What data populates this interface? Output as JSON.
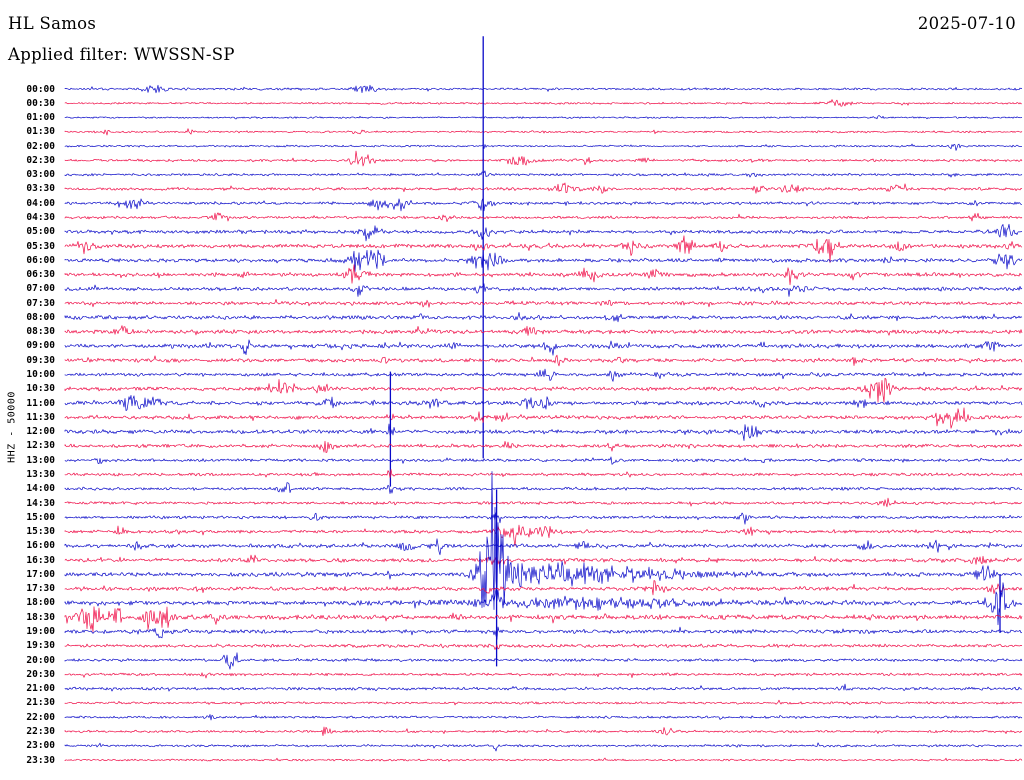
{
  "header": {
    "station": "HL Samos",
    "date": "2025-07-10",
    "filter_label": "Applied filter: WWSSN-SP"
  },
  "axis": {
    "scale_label": "HHZ - 50000"
  },
  "colors": {
    "blue": "#0a0ac8",
    "red": "#ef0d47",
    "text": "#000000",
    "background": "#ffffff"
  },
  "chart_data": {
    "type": "line",
    "subtype": "seismogram-helicorder",
    "station": "HL Samos",
    "date": "2025-07-10",
    "filter": "WWSSN-SP",
    "scale": "HHZ - 50000",
    "minutes_per_row": 30,
    "row_colors_alternate": [
      "blue",
      "red"
    ],
    "rows": [
      {
        "t": "00:00",
        "c": "blue",
        "n": 1.1,
        "e": [
          [
            0.094,
            4,
            8
          ],
          [
            0.314,
            5,
            9
          ]
        ]
      },
      {
        "t": "00:30",
        "c": "red",
        "n": 1.0,
        "e": [
          [
            0.805,
            3.5,
            8
          ]
        ]
      },
      {
        "t": "01:00",
        "c": "blue",
        "n": 0.9,
        "e": [
          [
            0.85,
            1.5,
            5
          ]
        ]
      },
      {
        "t": "01:30",
        "c": "red",
        "n": 1.0,
        "e": [
          [
            0.042,
            4,
            2
          ],
          [
            0.131,
            4,
            2
          ],
          [
            0.308,
            3,
            4
          ]
        ]
      },
      {
        "t": "02:00",
        "c": "blue",
        "n": 1.0,
        "e": [
          [
            0.437,
            3,
            2
          ],
          [
            0.93,
            4,
            3
          ]
        ]
      },
      {
        "t": "02:30",
        "c": "red",
        "n": 1.3,
        "e": [
          [
            0.308,
            8,
            7
          ],
          [
            0.475,
            9,
            8
          ],
          [
            0.543,
            3,
            5
          ],
          [
            0.606,
            3,
            5
          ],
          [
            0.721,
            2.5,
            4
          ]
        ]
      },
      {
        "t": "03:00",
        "c": "blue",
        "n": 1.2,
        "e": [
          [
            0.437,
            5,
            3
          ],
          [
            0.72,
            3,
            4
          ],
          [
            0.93,
            2.5,
            4
          ]
        ]
      },
      {
        "t": "03:30",
        "c": "red",
        "n": 1.5,
        "e": [
          [
            0.522,
            7,
            7
          ],
          [
            0.559,
            5,
            5
          ],
          [
            0.726,
            4,
            5
          ],
          [
            0.758,
            7,
            6
          ],
          [
            0.867,
            6,
            5
          ]
        ]
      },
      {
        "t": "04:00",
        "c": "blue",
        "n": 1.5,
        "e": [
          [
            0.073,
            6,
            8
          ],
          [
            0.329,
            8,
            6
          ],
          [
            0.35,
            9,
            6
          ],
          [
            0.437,
            12,
            5
          ],
          [
            0.951,
            3,
            4
          ]
        ],
        "s": [
          [
            0.437,
            167,
            255
          ]
        ]
      },
      {
        "t": "04:30",
        "c": "red",
        "n": 1.4,
        "e": [
          [
            0.162,
            5,
            6
          ],
          [
            0.397,
            4,
            4
          ],
          [
            0.951,
            3.5,
            4
          ]
        ]
      },
      {
        "t": "05:00",
        "c": "blue",
        "n": 1.8,
        "e": [
          [
            0.317,
            9,
            6
          ],
          [
            0.437,
            7,
            4
          ],
          [
            0.982,
            8,
            6
          ]
        ]
      },
      {
        "t": "05:30",
        "c": "red",
        "n": 2.0,
        "e": [
          [
            0.024,
            7,
            7
          ],
          [
            0.434,
            4,
            5
          ],
          [
            0.59,
            8,
            6
          ],
          [
            0.648,
            9,
            6
          ],
          [
            0.684,
            7,
            5
          ],
          [
            0.789,
            9,
            6
          ],
          [
            0.799,
            8,
            5
          ],
          [
            0.873,
            5,
            5
          ],
          [
            0.988,
            4,
            4
          ]
        ]
      },
      {
        "t": "06:00",
        "c": "blue",
        "n": 2.0,
        "e": [
          [
            0.308,
            12,
            7
          ],
          [
            0.324,
            10,
            6
          ],
          [
            0.434,
            10,
            6
          ],
          [
            0.449,
            9,
            5
          ],
          [
            0.862,
            4,
            4
          ],
          [
            0.982,
            8,
            6
          ]
        ]
      },
      {
        "t": "06:30",
        "c": "red",
        "n": 2.0,
        "e": [
          [
            0.188,
            4,
            4
          ],
          [
            0.303,
            10,
            7
          ],
          [
            0.549,
            7,
            6
          ],
          [
            0.617,
            8,
            5
          ],
          [
            0.758,
            8,
            5
          ],
          [
            0.826,
            4,
            4
          ]
        ]
      },
      {
        "t": "07:00",
        "c": "blue",
        "n": 1.8,
        "e": [
          [
            0.308,
            6,
            5
          ],
          [
            0.437,
            5,
            4
          ],
          [
            0.726,
            5,
            4
          ],
          [
            0.768,
            8,
            6
          ]
        ]
      },
      {
        "t": "07:30",
        "c": "red",
        "n": 1.8,
        "e": [
          [
            0.376,
            4,
            4
          ],
          [
            0.567,
            6,
            3
          ],
          [
            0.742,
            3,
            3
          ]
        ]
      },
      {
        "t": "08:00",
        "c": "blue",
        "n": 2.0,
        "e": [
          [
            0.371,
            5,
            4
          ],
          [
            0.475,
            5,
            4
          ],
          [
            0.573,
            7,
            4
          ]
        ]
      },
      {
        "t": "08:30",
        "c": "red",
        "n": 2.0,
        "e": [
          [
            0.057,
            6,
            6
          ],
          [
            0.371,
            4,
            3
          ],
          [
            0.486,
            6,
            5
          ]
        ]
      },
      {
        "t": "09:00",
        "c": "blue",
        "n": 2.2,
        "e": [
          [
            0.188,
            6,
            3
          ],
          [
            0.408,
            4,
            3
          ],
          [
            0.507,
            5,
            4
          ],
          [
            0.573,
            5,
            3
          ],
          [
            0.967,
            6,
            5
          ]
        ]
      },
      {
        "t": "09:30",
        "c": "red",
        "n": 2.0,
        "e": [
          [
            0.334,
            4,
            3
          ],
          [
            0.517,
            5,
            4
          ],
          [
            0.58,
            4,
            3
          ],
          [
            0.826,
            4,
            3
          ]
        ]
      },
      {
        "t": "10:00",
        "c": "blue",
        "n": 1.9,
        "e": [
          [
            0.502,
            7,
            5
          ],
          [
            0.573,
            5,
            3
          ],
          [
            0.622,
            4,
            3
          ]
        ]
      },
      {
        "t": "10:30",
        "c": "red",
        "n": 1.9,
        "e": [
          [
            0.219,
            8,
            6
          ],
          [
            0.235,
            7,
            5
          ],
          [
            0.266,
            4,
            4
          ],
          [
            0.846,
            11,
            7
          ],
          [
            0.857,
            9,
            5
          ]
        ]
      },
      {
        "t": "11:00",
        "c": "blue",
        "n": 2.0,
        "e": [
          [
            0.068,
            8,
            7
          ],
          [
            0.089,
            7,
            6
          ],
          [
            0.277,
            6,
            5
          ],
          [
            0.381,
            7,
            6
          ],
          [
            0.486,
            6,
            5
          ],
          [
            0.502,
            6,
            4
          ],
          [
            0.726,
            5,
            4
          ],
          [
            0.831,
            4,
            4
          ]
        ]
      },
      {
        "t": "11:30",
        "c": "red",
        "n": 2.0,
        "e": [
          [
            0.34,
            8,
            2
          ],
          [
            0.434,
            5,
            4
          ],
          [
            0.455,
            5,
            4
          ],
          [
            0.92,
            10,
            8
          ],
          [
            0.935,
            9,
            6
          ]
        ]
      },
      {
        "t": "12:00",
        "c": "blue",
        "n": 2.0,
        "e": [
          [
            0.34,
            14,
            2
          ],
          [
            0.711,
            7,
            5
          ],
          [
            0.721,
            6,
            4
          ],
          [
            0.977,
            6,
            5
          ]
        ],
        "s": [
          [
            0.34,
            60,
            55
          ]
        ]
      },
      {
        "t": "12:30",
        "c": "red",
        "n": 1.8,
        "e": [
          [
            0.272,
            7,
            5
          ],
          [
            0.465,
            5,
            4
          ],
          [
            0.573,
            4,
            3
          ]
        ]
      },
      {
        "t": "13:00",
        "c": "blue",
        "n": 1.5,
        "e": [
          [
            0.037,
            4,
            3
          ],
          [
            0.573,
            6,
            3
          ],
          [
            0.732,
            4,
            3
          ]
        ]
      },
      {
        "t": "13:30",
        "c": "red",
        "n": 1.5,
        "e": [
          [
            0.34,
            5,
            2
          ]
        ]
      },
      {
        "t": "14:00",
        "c": "blue",
        "n": 1.5,
        "e": [
          [
            0.23,
            6,
            5
          ],
          [
            0.34,
            10,
            1.5
          ]
        ]
      },
      {
        "t": "14:30",
        "c": "red",
        "n": 1.5,
        "e": [
          [
            0.857,
            5,
            4
          ]
        ]
      },
      {
        "t": "15:00",
        "c": "blue",
        "n": 1.5,
        "e": [
          [
            0.261,
            5,
            3
          ],
          [
            0.451,
            8,
            3
          ],
          [
            0.711,
            5,
            4
          ]
        ]
      },
      {
        "t": "15:30",
        "c": "red",
        "n": 1.6,
        "e": [
          [
            0.057,
            5,
            3
          ],
          [
            0.455,
            7,
            5
          ],
          [
            0.475,
            9,
            7
          ],
          [
            0.502,
            6,
            8
          ],
          [
            0.716,
            5,
            4
          ]
        ]
      },
      {
        "t": "16:00",
        "c": "blue",
        "n": 2.0,
        "e": [
          [
            0.073,
            5,
            4
          ],
          [
            0.355,
            7,
            5
          ],
          [
            0.392,
            6,
            5
          ],
          [
            0.543,
            5,
            4
          ],
          [
            0.836,
            7,
            5
          ],
          [
            0.909,
            6,
            5
          ]
        ]
      },
      {
        "t": "16:30",
        "c": "red",
        "n": 2.0,
        "e": [
          [
            0.193,
            5,
            4
          ],
          [
            0.451,
            6,
            5
          ],
          [
            0.956,
            5,
            5
          ]
        ]
      },
      {
        "t": "17:00",
        "c": "blue",
        "n": 2.2,
        "e": [
          [
            0.444,
            40,
            8
          ],
          [
            0.455,
            30,
            12
          ],
          [
            0.517,
            10,
            30
          ],
          [
            0.601,
            5,
            50
          ],
          [
            0.961,
            10,
            6
          ]
        ],
        "s": [
          [
            0.451,
            85,
            92
          ]
        ]
      },
      {
        "t": "17:30",
        "c": "red",
        "n": 2.0,
        "e": [
          [
            0.441,
            8,
            4
          ],
          [
            0.617,
            6,
            5
          ],
          [
            0.972,
            6,
            5
          ]
        ]
      },
      {
        "t": "18:00",
        "c": "blue",
        "n": 2.4,
        "e": [
          [
            0.451,
            10,
            4
          ],
          [
            0.55,
            5,
            80
          ],
          [
            0.977,
            22,
            8
          ]
        ],
        "s": [
          [
            0.977,
            28,
            30
          ]
        ]
      },
      {
        "t": "18:30",
        "c": "red",
        "n": 2.4,
        "e": [
          [
            0.026,
            13,
            9
          ],
          [
            0.052,
            11,
            6
          ],
          [
            0.089,
            12,
            6
          ],
          [
            0.105,
            10,
            5
          ],
          [
            0.157,
            6,
            4
          ],
          [
            0.408,
            5,
            3
          ]
        ]
      },
      {
        "t": "19:00",
        "c": "blue",
        "n": 2.0,
        "e": [
          [
            0.099,
            6,
            4
          ],
          [
            0.451,
            8,
            2
          ]
        ]
      },
      {
        "t": "19:30",
        "c": "red",
        "n": 1.7,
        "e": [
          [
            0.451,
            5,
            2
          ]
        ]
      },
      {
        "t": "20:00",
        "c": "blue",
        "n": 1.5,
        "e": [
          [
            0.172,
            10,
            5
          ]
        ]
      },
      {
        "t": "20:30",
        "c": "red",
        "n": 1.4,
        "e": [
          [
            0.146,
            5,
            2
          ]
        ]
      },
      {
        "t": "21:00",
        "c": "blue",
        "n": 1.5,
        "e": [
          [
            0.815,
            4,
            3
          ]
        ]
      },
      {
        "t": "21:30",
        "c": "red",
        "n": 1.2,
        "e": []
      },
      {
        "t": "22:00",
        "c": "blue",
        "n": 1.2,
        "e": [
          [
            0.152,
            3,
            3
          ]
        ]
      },
      {
        "t": "22:30",
        "c": "red",
        "n": 1.2,
        "e": [
          [
            0.272,
            5,
            3
          ],
          [
            0.627,
            6,
            4
          ]
        ]
      },
      {
        "t": "23:00",
        "c": "blue",
        "n": 1.2,
        "e": [
          [
            0.451,
            4,
            3
          ]
        ]
      },
      {
        "t": "23:30",
        "c": "red",
        "n": 1.0,
        "e": []
      }
    ]
  }
}
